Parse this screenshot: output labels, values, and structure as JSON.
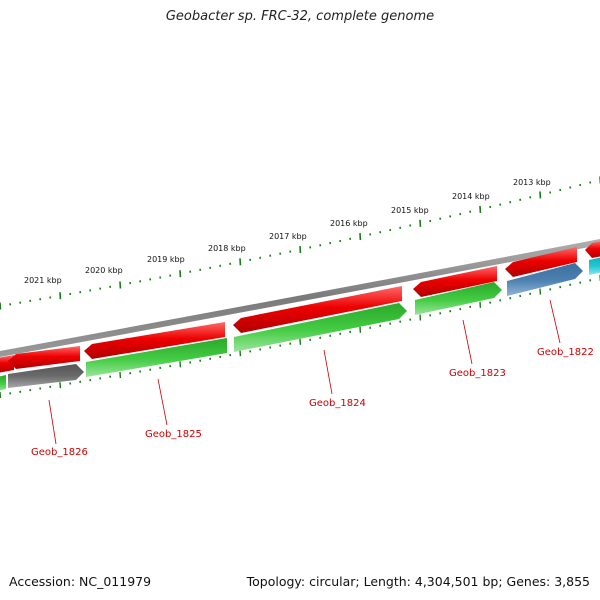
{
  "header": {
    "title": "Geobacter sp. FRC-32, complete genome"
  },
  "footer": {
    "accession": "Accession: NC_011979",
    "stats": "Topology: circular; Length: 4,304,501 bp; Genes: 3,855"
  },
  "colors": {
    "backbone": "#808080",
    "forward_gene": "#ee0000",
    "reverse_gene": "#33bb33",
    "pseudo_gene": "#666666",
    "rna_gene": "#4a7fb0",
    "other_gene": "#22c7d4",
    "ticks": "#1a7a1a",
    "labels": "#cc0000"
  },
  "scale": {
    "tick_labels": [
      "2021 kbp",
      "2020 kbp",
      "2019 kbp",
      "2018 kbp",
      "2017 kbp",
      "2016 kbp",
      "2015 kbp",
      "2014 kbp",
      "2013 kbp"
    ]
  },
  "genes": [
    {
      "label": "Geob_1826"
    },
    {
      "label": "Geob_1825"
    },
    {
      "label": "Geob_1824"
    },
    {
      "label": "Geob_1823"
    },
    {
      "label": "Geob_1822"
    }
  ]
}
